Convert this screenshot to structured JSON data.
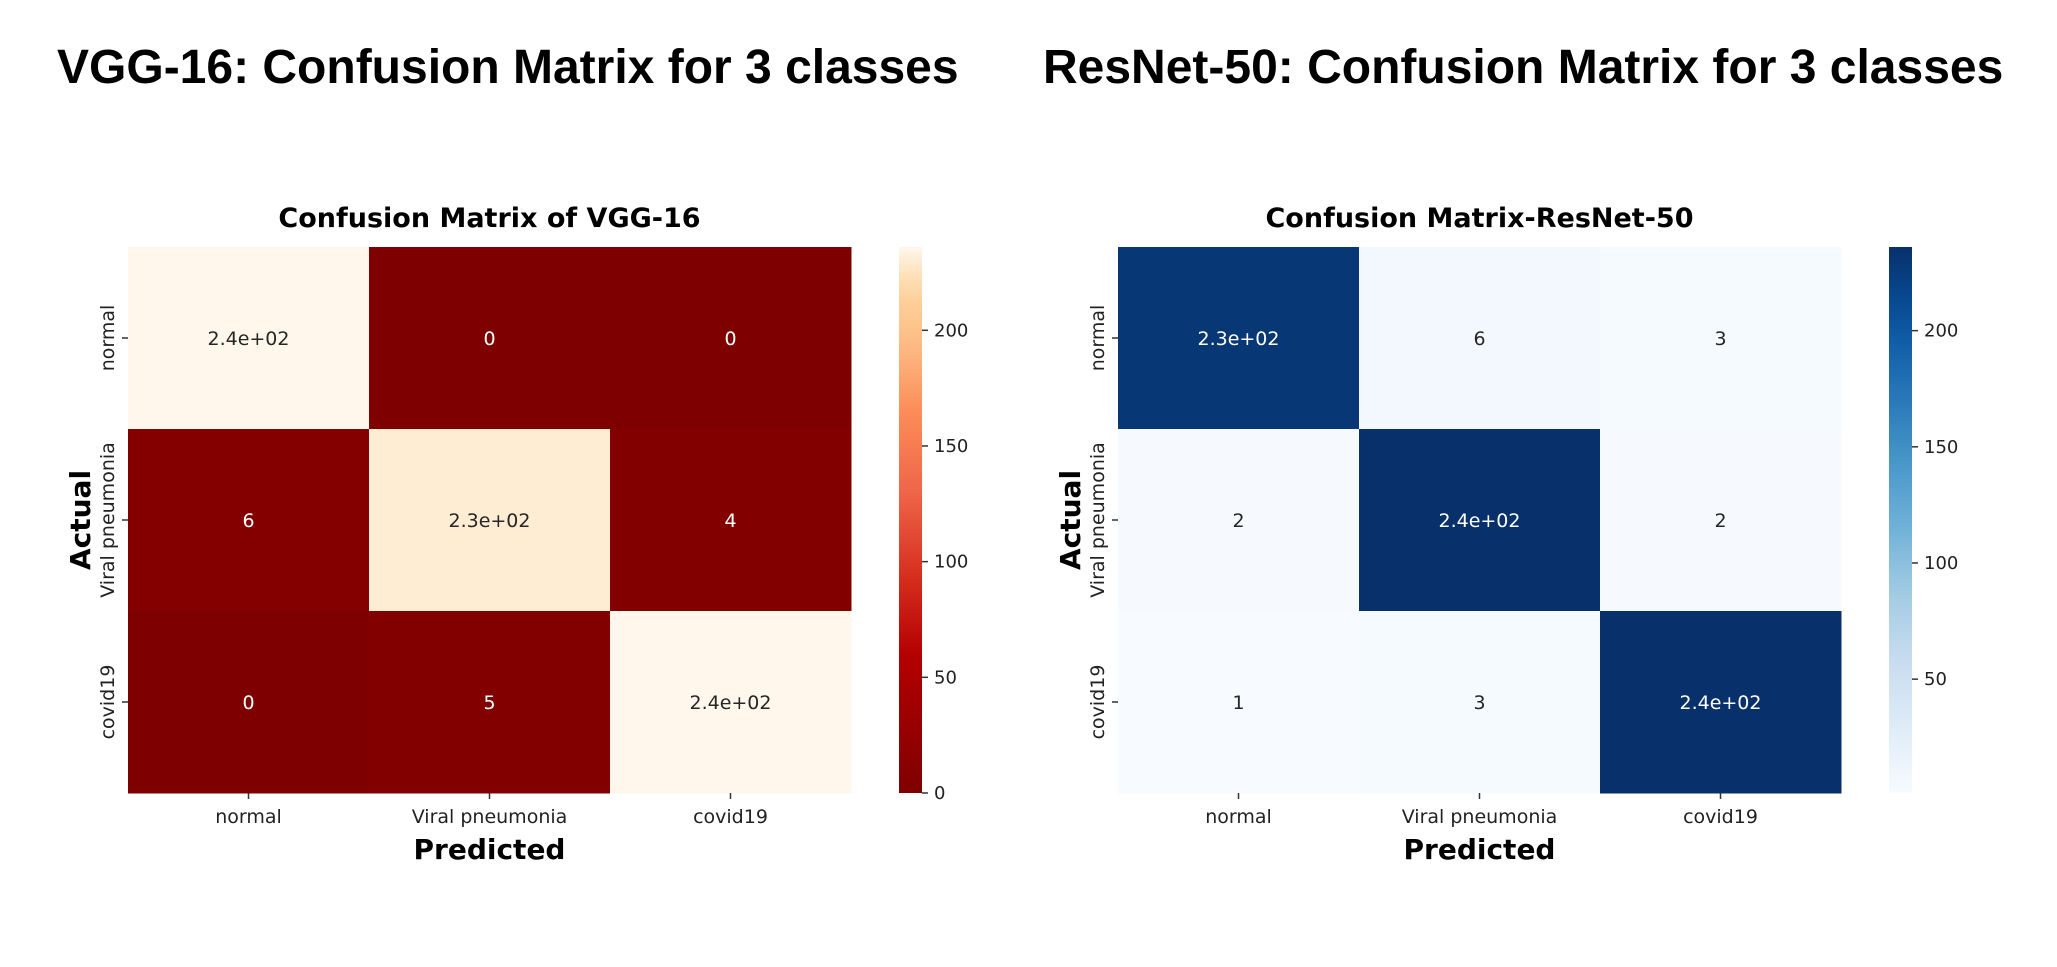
{
  "headings": {
    "left": "VGG-16: Confusion Matrix for 3 classes",
    "right": "ResNet-50: Confusion Matrix for 3 classes"
  },
  "chart_data": [
    {
      "type": "heatmap",
      "title": "Confusion Matrix of VGG-16",
      "xlabel": "Predicted",
      "ylabel": "Actual",
      "x_categories": [
        "normal",
        "Viral pneumonia",
        "covid19"
      ],
      "y_categories": [
        "normal",
        "Viral pneumonia",
        "covid19"
      ],
      "values": [
        [
          240,
          0,
          0
        ],
        [
          6,
          230,
          4
        ],
        [
          0,
          5,
          240
        ]
      ],
      "cell_labels": [
        [
          "2.4e+02",
          "0",
          "0"
        ],
        [
          "6",
          "2.3e+02",
          "4"
        ],
        [
          "0",
          "5",
          "2.4e+02"
        ]
      ],
      "colormap": "OrRd_r",
      "colorbar": {
        "min": 0,
        "max": 236,
        "ticks": [
          0,
          50,
          100,
          150,
          200
        ]
      }
    },
    {
      "type": "heatmap",
      "title": "Confusion Matrix-ResNet-50",
      "xlabel": "Predicted",
      "ylabel": "Actual",
      "x_categories": [
        "normal",
        "Viral pneumonia",
        "covid19"
      ],
      "y_categories": [
        "normal",
        "Viral pneumonia",
        "covid19"
      ],
      "values": [
        [
          230,
          6,
          3
        ],
        [
          2,
          240,
          2
        ],
        [
          1,
          3,
          240
        ]
      ],
      "cell_labels": [
        [
          "2.3e+02",
          "6",
          "3"
        ],
        [
          "2",
          "2.4e+02",
          "2"
        ],
        [
          "1",
          "3",
          "2.4e+02"
        ]
      ],
      "colormap": "Blues",
      "colorbar": {
        "min": 1,
        "max": 236,
        "ticks": [
          50,
          100,
          150,
          200
        ]
      }
    }
  ]
}
